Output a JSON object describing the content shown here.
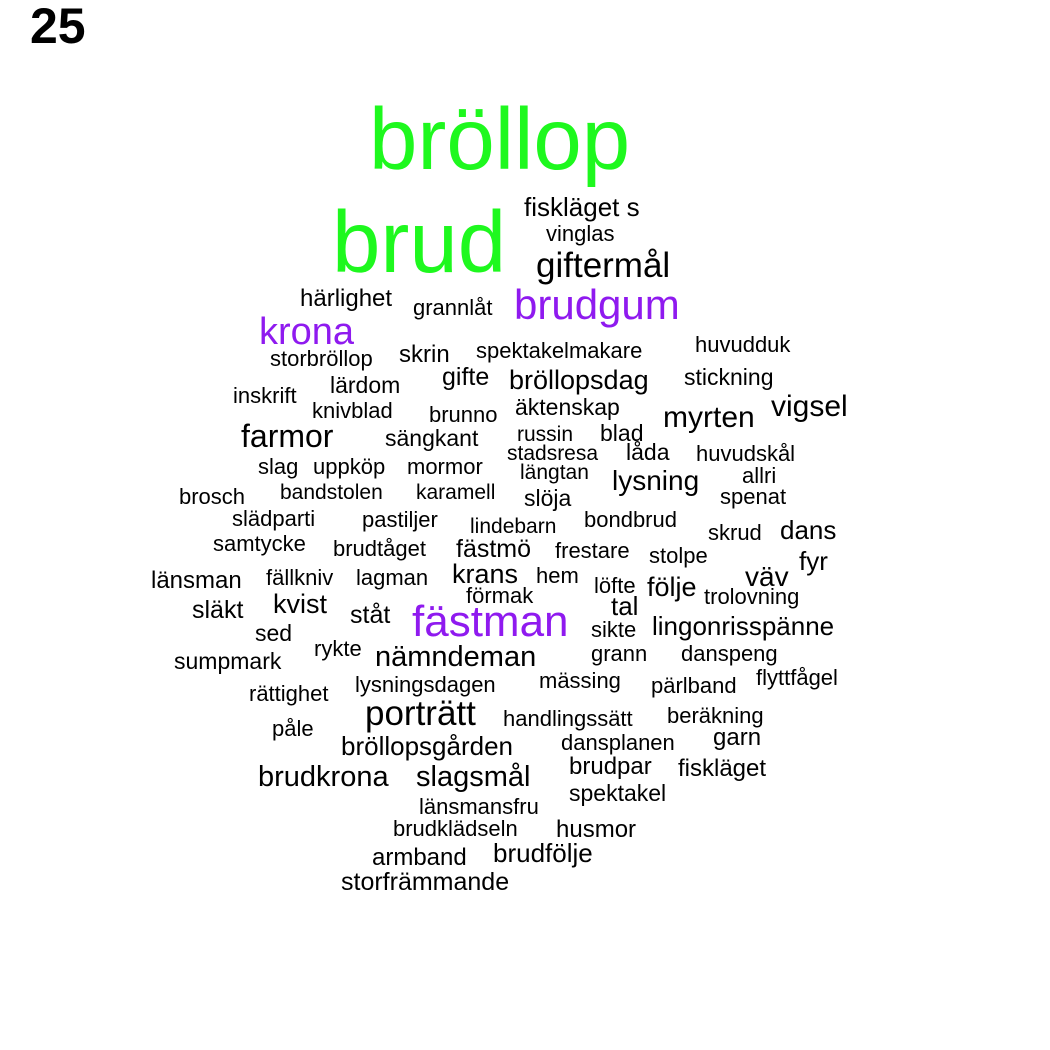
{
  "figure_number": "25",
  "colors": {
    "green": "#1ef81e",
    "purple": "#8f1aef",
    "black": "#000000"
  },
  "words": {
    "brollop": "bröllop",
    "brud": "brud",
    "brudgum": "brudgum",
    "krona": "krona",
    "fastman": "fästman",
    "fisklagets": "fiskläget s",
    "vinglas": "vinglas",
    "giftermal": "giftermål",
    "harlighet": "härlighet",
    "grannlat": "grannlåt",
    "storbrollop": "storbröllop",
    "skrin": "skrin",
    "spektakelmakare": "spektakelmakare",
    "huvudduk": "huvudduk",
    "gifte": "gifte",
    "brollopsdag": "bröllopsdag",
    "stickning": "stickning",
    "lardom": "lärdom",
    "inskrift": "inskrift",
    "knivblad": "knivblad",
    "brunno": "brunno",
    "aktenskap": "äktenskap",
    "myrten": "myrten",
    "vigsel": "vigsel",
    "farmor": "farmor",
    "sangkant": "sängkant",
    "russin": "russin",
    "blad": "blad",
    "stadsresa": "stadsresa",
    "lada": "låda",
    "huvudskal": "huvudskål",
    "slag": "slag",
    "uppkop": "uppköp",
    "mormor": "mormor",
    "langtan": "längtan",
    "lysning": "lysning",
    "allri": "allri",
    "brosch": "brosch",
    "bandstolen": "bandstolen",
    "karamell": "karamell",
    "sloja": "slöja",
    "spenat": "spenat",
    "sladparti": "slädparti",
    "pastiljer": "pastiljer",
    "lindebarn": "lindebarn",
    "bondbrud": "bondbrud",
    "skrud": "skrud",
    "dans": "dans",
    "samtycke": "samtycke",
    "brudtaget": "brudtåget",
    "fastmo": "fästmö",
    "frestare": "frestare",
    "stolpe": "stolpe",
    "fyr": "fyr",
    "lansman": "länsman",
    "fallkniv": "fällkniv",
    "lagman": "lagman",
    "krans": "krans",
    "hem": "hem",
    "lofte": "löfte",
    "folje": "följe",
    "vav": "väv",
    "formak": "förmak",
    "trolovning": "trolovning",
    "slakt": "släkt",
    "kvist": "kvist",
    "stat": "ståt",
    "tal": "tal",
    "sed": "sed",
    "sikte": "sikte",
    "lingonrisspanne": "lingonrisspänne",
    "sumpmark": "sumpmark",
    "rykte": "rykte",
    "namndeman": "nämndeman",
    "grann": "grann",
    "danspeng": "danspeng",
    "rattighet": "rättighet",
    "lysningsdagen": "lysningsdagen",
    "massing": "mässing",
    "parlband": "pärlband",
    "flyttfagel": "flyttfågel",
    "portratt": "porträtt",
    "handlingssatt": "handlingssätt",
    "berakning": "beräkning",
    "pale": "påle",
    "brollopsgarden": "bröllopsgården",
    "dansplanen": "dansplanen",
    "garn": "garn",
    "brudkrona": "brudkrona",
    "slagsmal": "slagsmål",
    "brudpar": "brudpar",
    "fisklaget": "fiskläget",
    "lansmansfru": "länsmansfru",
    "spektakel": "spektakel",
    "brudkladseln": "brudklädseln",
    "husmor": "husmor",
    "armband": "armband",
    "brudfolje": "brudfölje",
    "storframmande": "storfrämmande"
  }
}
